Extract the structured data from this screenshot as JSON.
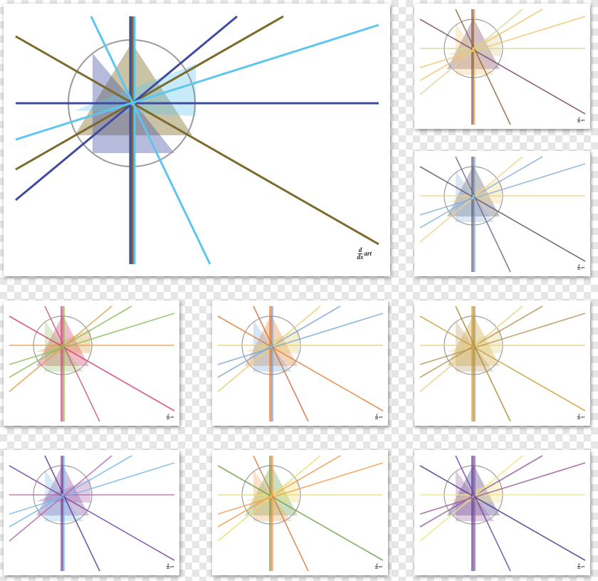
{
  "logo": {
    "numerator": "d",
    "denominator": "dx",
    "word": "art"
  },
  "cards": [
    {
      "id": "main",
      "palette": [
        "#3f4aa0",
        "#5ec6ee",
        "#7a6a2c",
        "#3f4aa0"
      ]
    },
    {
      "id": "r1",
      "palette": [
        "#7a4a6a",
        "#f1c56a",
        "#d9d49a",
        "#8a6a3a"
      ]
    },
    {
      "id": "r2",
      "palette": [
        "#5a5a6a",
        "#8ab0d6",
        "#f1d48a",
        "#6a6a90"
      ]
    },
    {
      "id": "b1",
      "palette": [
        "#d4406a",
        "#8ac05a",
        "#e0a04a",
        "#c0607a"
      ]
    },
    {
      "id": "b2",
      "palette": [
        "#e0803a",
        "#7aa8d6",
        "#e6d070",
        "#d07040"
      ]
    },
    {
      "id": "b3",
      "palette": [
        "#c8a23a",
        "#b8965a",
        "#e8d080",
        "#a88a3a"
      ]
    },
    {
      "id": "c1",
      "palette": [
        "#7a4aa0",
        "#7ab8e6",
        "#b06ab0",
        "#5a3a90"
      ]
    },
    {
      "id": "c2",
      "palette": [
        "#6aa04a",
        "#f0a050",
        "#e8e070",
        "#d08040"
      ]
    },
    {
      "id": "c3",
      "palette": [
        "#4a3a8a",
        "#9a5aa0",
        "#f0e480",
        "#6a4aa0"
      ]
    }
  ]
}
